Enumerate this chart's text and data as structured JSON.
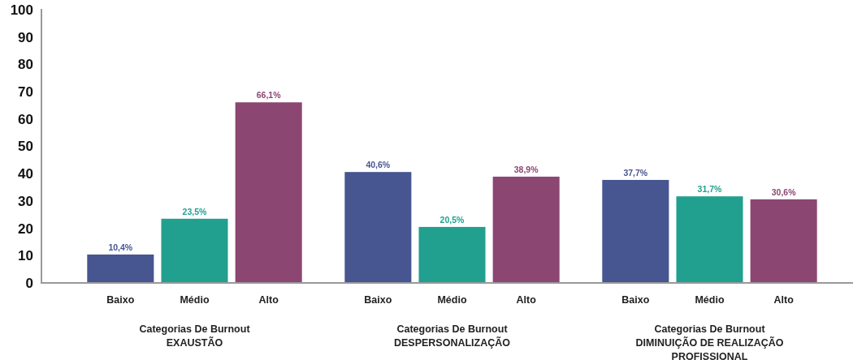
{
  "chart_data": {
    "type": "bar",
    "categories": [
      "Categorias De Burnout\nEXAUSTÃO",
      "Categorias De Burnout\nDESPERSONALIZAÇÃO",
      "Categorias De Burnout\nDIMINUIÇÃO DE REALIZAÇÃO\nPROFISSIONAL"
    ],
    "series": [
      {
        "name": "Baixo",
        "color": "#475590",
        "values": [
          10.4,
          40.6,
          37.7
        ],
        "value_labels": [
          "10,4%",
          "40,6%",
          "37,7%"
        ]
      },
      {
        "name": "Médio",
        "color": "#22a08f",
        "values": [
          23.5,
          20.5,
          31.7
        ],
        "value_labels": [
          "23,5%",
          "20,5%",
          "31,7%"
        ]
      },
      {
        "name": "Alto",
        "color": "#8c4672",
        "values": [
          66.1,
          38.9,
          30.6
        ],
        "value_labels": [
          "66,1%",
          "38,9%",
          "30,6%"
        ]
      }
    ],
    "ylim": [
      0,
      100
    ],
    "yticks": [
      0,
      10,
      20,
      30,
      40,
      50,
      60,
      70,
      80,
      90,
      100
    ]
  }
}
